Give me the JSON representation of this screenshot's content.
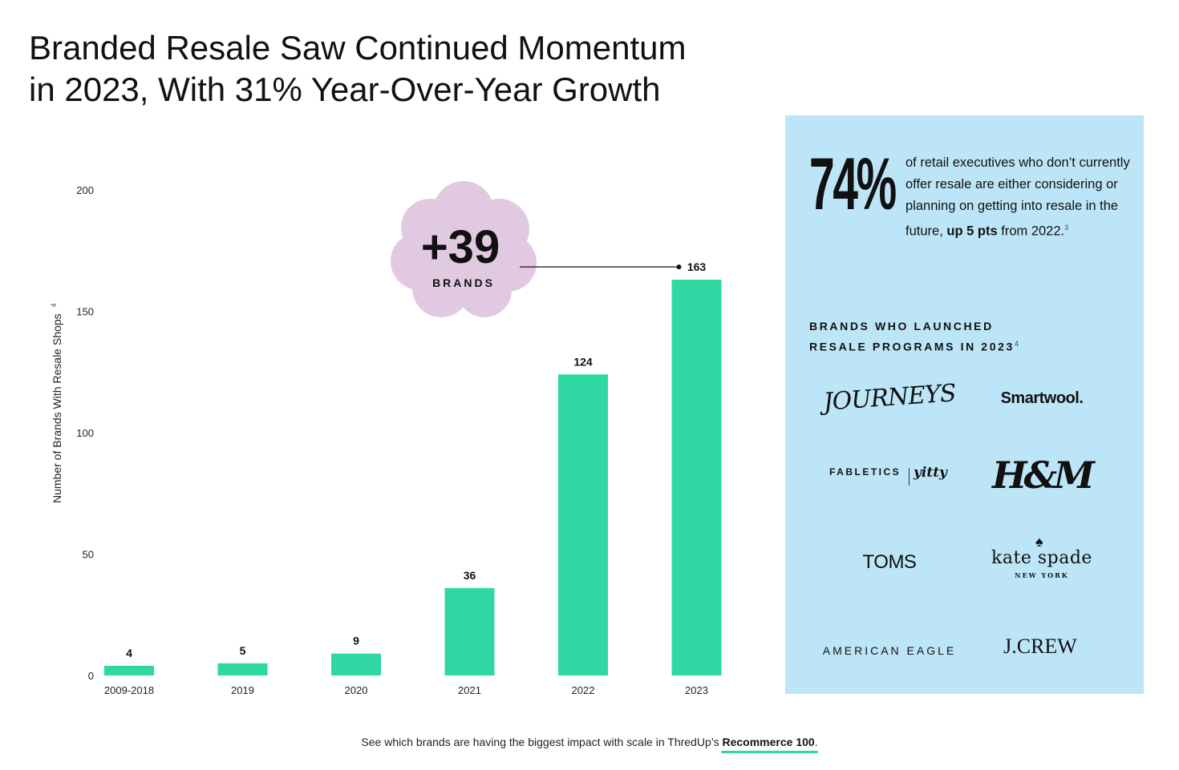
{
  "title": {
    "line1": "Branded Resale Saw Continued Momentum",
    "line2": "in 2023, With 31% Year-Over-Year Growth"
  },
  "chart_data": {
    "type": "bar",
    "categories": [
      "2009-2018",
      "2019",
      "2020",
      "2021",
      "2022",
      "2023"
    ],
    "values": [
      4,
      5,
      9,
      36,
      124,
      163
    ],
    "data_labels": [
      "4",
      "5",
      "9",
      "36",
      "124",
      "163"
    ],
    "ylabel": "Number of Brands With Resale Shops",
    "ylabel_footnote": "4",
    "ylim": [
      0,
      200
    ],
    "yticks": [
      0,
      50,
      100,
      150,
      200
    ],
    "grid": false,
    "bar_color": "#2fd8a3",
    "annotation": {
      "big": "+39",
      "small": "BRANDS",
      "color": "#e2c9e2"
    }
  },
  "side_panel": {
    "background": "#bde5f8",
    "stat_value": "74%",
    "stat_text_before": "of retail executives who don’t currently offer resale are either considering or planning on getting into resale in the future,",
    "stat_text_bold": "up 5 pts",
    "stat_text_after": "from 2022.",
    "stat_footnote": "3",
    "brands_heading_line1": "BRANDS WHO LAUNCHED",
    "brands_heading_line2": "RESALE  PROGRAMS IN 2023",
    "brands_heading_footnote": "4",
    "logos": {
      "journeys": "JOURNEYS",
      "smartwool": "Smartwool.",
      "fabletics": "FABLETICS",
      "yitty": "yitty",
      "hm": "H&M",
      "toms": "TOMS",
      "katespade": "kate spade",
      "katespade_sub": "NEW YORK",
      "american_eagle": "AMERICAN EAGLE",
      "jcrew": "J.CREW"
    }
  },
  "footer": {
    "text": "See which brands are having the biggest impact with scale in ThredUp’s",
    "link": "Recommerce 100",
    "end": "."
  }
}
